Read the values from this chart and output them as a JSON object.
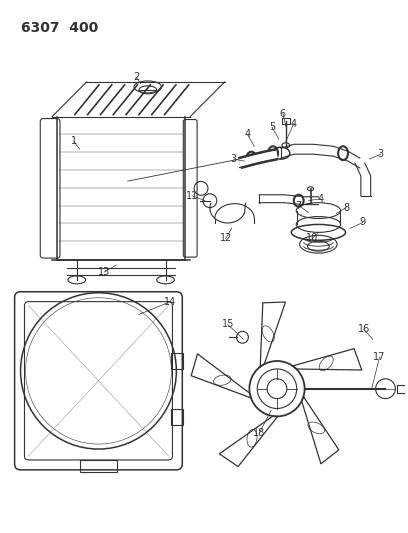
{
  "title": "6307  400",
  "background_color": "#ffffff",
  "fig_width": 4.08,
  "fig_height": 5.33,
  "dpi": 100,
  "line_color": "#333333",
  "label_fontsize": 7.0,
  "title_fontsize": 10.0
}
